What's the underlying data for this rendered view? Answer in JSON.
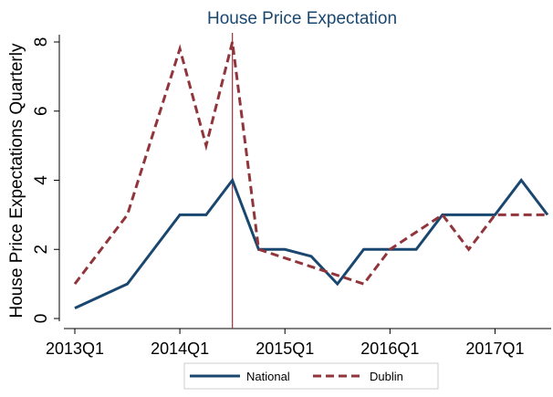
{
  "chart_data": {
    "type": "line",
    "title": "House Price Expectation",
    "y_label": "House Price Expectations Quarterly",
    "x": [
      0,
      1,
      2,
      3,
      4,
      5,
      6,
      7,
      8,
      9,
      10,
      11,
      12,
      13,
      14,
      15,
      16,
      17,
      18
    ],
    "xlim": [
      0,
      18
    ],
    "xticks": [
      {
        "value": 0,
        "label": "2013Q1"
      },
      {
        "value": 4,
        "label": "2014Q1"
      },
      {
        "value": 8,
        "label": "2015Q1"
      },
      {
        "value": 12,
        "label": "2016Q1"
      },
      {
        "value": 16,
        "label": "2017Q1"
      }
    ],
    "ylim": [
      0,
      8
    ],
    "yticks": [
      0,
      2,
      4,
      6,
      8
    ],
    "vline": 6,
    "vline_color": "#90353b",
    "series": [
      {
        "name": "National",
        "color": "#1a476f",
        "dash": false,
        "values": [
          0.3,
          0.65,
          1,
          2,
          3,
          3,
          4,
          2,
          2,
          1.8,
          1,
          2,
          2,
          2,
          3,
          3,
          3,
          4,
          3
        ]
      },
      {
        "name": "Dublin",
        "color": "#90353b",
        "dash": true,
        "values": [
          1,
          2,
          3,
          5.4,
          7.8,
          5,
          8,
          2,
          1.75,
          1.5,
          1.25,
          1,
          2,
          2.5,
          3,
          2,
          3,
          3,
          3
        ]
      }
    ]
  }
}
